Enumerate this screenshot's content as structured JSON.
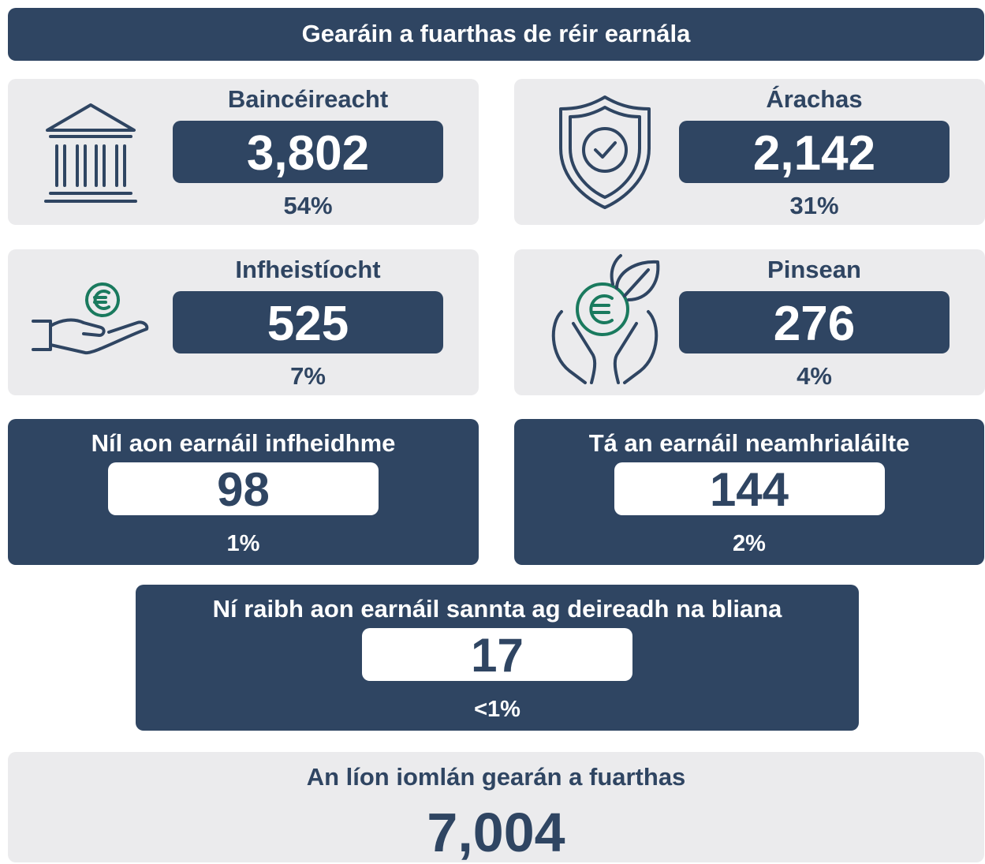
{
  "title": "Gearáin a fuarthas de réir earnála",
  "sectors": [
    {
      "name": "Baincéireacht",
      "count": "3,802",
      "percent": "54%"
    },
    {
      "name": "Árachas",
      "count": "2,142",
      "percent": "31%"
    },
    {
      "name": "Infheistíocht",
      "count": "525",
      "percent": "7%"
    },
    {
      "name": "Pinsean",
      "count": "276",
      "percent": "4%"
    }
  ],
  "other": [
    {
      "name": "Níl aon earnáil infheidhme",
      "count": "98",
      "percent": "1%"
    },
    {
      "name": "Tá an earnáil neamhrialáilte",
      "count": "144",
      "percent": "2%"
    },
    {
      "name": "Ní raibh aon earnáil sannta ag deireadh na bliana",
      "count": "17",
      "percent": "<1%"
    }
  ],
  "total": {
    "label": "An líon iomlán gearán a fuarthas",
    "count": "7,004"
  }
}
